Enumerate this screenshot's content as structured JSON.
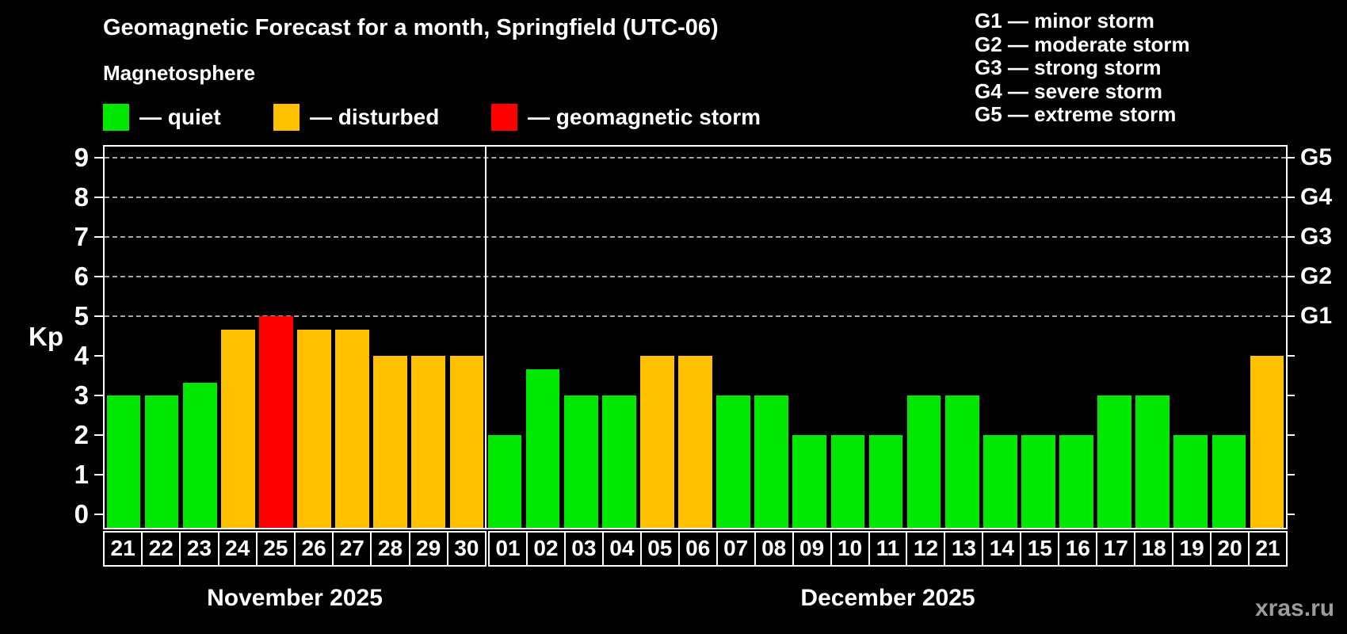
{
  "page": {
    "background": "#000000",
    "watermark": "xras.ru"
  },
  "header": {
    "title": "Geomagnetic Forecast for a month, Springfield (UTC-06)",
    "subtitle": "Magnetosphere"
  },
  "legend": {
    "items": [
      {
        "status": "quiet",
        "label": "— quiet",
        "color": "#00e800"
      },
      {
        "status": "disturbed",
        "label": "— disturbed",
        "color": "#ffc000"
      },
      {
        "status": "storm",
        "label": "— geomagnetic storm",
        "color": "#ff0000"
      }
    ]
  },
  "g_scale": {
    "lines": [
      "G1 — minor storm",
      "G2 — moderate storm",
      "G3 — strong storm",
      "G4 — severe storm",
      "G5 — extreme storm"
    ]
  },
  "chart_data": {
    "type": "bar",
    "title": "Geomagnetic Forecast for a month, Springfield (UTC-06)",
    "subtitle": "Magnetosphere",
    "ylabel": "Kp",
    "ylim": [
      0,
      9
    ],
    "yticks": [
      0,
      1,
      2,
      3,
      4,
      5,
      6,
      7,
      8,
      9
    ],
    "grid_levels": [
      5,
      6,
      7,
      8,
      9
    ],
    "grid_on": true,
    "right_axis": [
      {
        "level": 5,
        "label": "G1"
      },
      {
        "level": 6,
        "label": "G2"
      },
      {
        "level": 7,
        "label": "G3"
      },
      {
        "level": 8,
        "label": "G4"
      },
      {
        "level": 9,
        "label": "G5"
      }
    ],
    "colors": {
      "quiet": "#00e800",
      "disturbed": "#ffc000",
      "storm": "#ff0000"
    },
    "months": [
      {
        "key": "nov",
        "label": "November 2025",
        "days": [
          {
            "day": "21",
            "kp": 3,
            "status": "quiet"
          },
          {
            "day": "22",
            "kp": 3,
            "status": "quiet"
          },
          {
            "day": "23",
            "kp": 3.33,
            "status": "quiet"
          },
          {
            "day": "24",
            "kp": 4.67,
            "status": "disturbed"
          },
          {
            "day": "25",
            "kp": 5,
            "status": "storm"
          },
          {
            "day": "26",
            "kp": 4.67,
            "status": "disturbed"
          },
          {
            "day": "27",
            "kp": 4.67,
            "status": "disturbed"
          },
          {
            "day": "28",
            "kp": 4,
            "status": "disturbed"
          },
          {
            "day": "29",
            "kp": 4,
            "status": "disturbed"
          },
          {
            "day": "30",
            "kp": 4,
            "status": "disturbed"
          }
        ]
      },
      {
        "key": "dec",
        "label": "December 2025",
        "days": [
          {
            "day": "01",
            "kp": 2,
            "status": "quiet"
          },
          {
            "day": "02",
            "kp": 3.67,
            "status": "quiet"
          },
          {
            "day": "03",
            "kp": 3,
            "status": "quiet"
          },
          {
            "day": "04",
            "kp": 3,
            "status": "quiet"
          },
          {
            "day": "05",
            "kp": 4,
            "status": "disturbed"
          },
          {
            "day": "06",
            "kp": 4,
            "status": "disturbed"
          },
          {
            "day": "07",
            "kp": 3,
            "status": "quiet"
          },
          {
            "day": "08",
            "kp": 3,
            "status": "quiet"
          },
          {
            "day": "09",
            "kp": 2,
            "status": "quiet"
          },
          {
            "day": "10",
            "kp": 2,
            "status": "quiet"
          },
          {
            "day": "11",
            "kp": 2,
            "status": "quiet"
          },
          {
            "day": "12",
            "kp": 3,
            "status": "quiet"
          },
          {
            "day": "13",
            "kp": 3,
            "status": "quiet"
          },
          {
            "day": "14",
            "kp": 2,
            "status": "quiet"
          },
          {
            "day": "15",
            "kp": 2,
            "status": "quiet"
          },
          {
            "day": "16",
            "kp": 2,
            "status": "quiet"
          },
          {
            "day": "17",
            "kp": 3,
            "status": "quiet"
          },
          {
            "day": "18",
            "kp": 3,
            "status": "quiet"
          },
          {
            "day": "19",
            "kp": 2,
            "status": "quiet"
          },
          {
            "day": "20",
            "kp": 2,
            "status": "quiet"
          },
          {
            "day": "21",
            "kp": 4,
            "status": "disturbed"
          }
        ]
      }
    ]
  }
}
